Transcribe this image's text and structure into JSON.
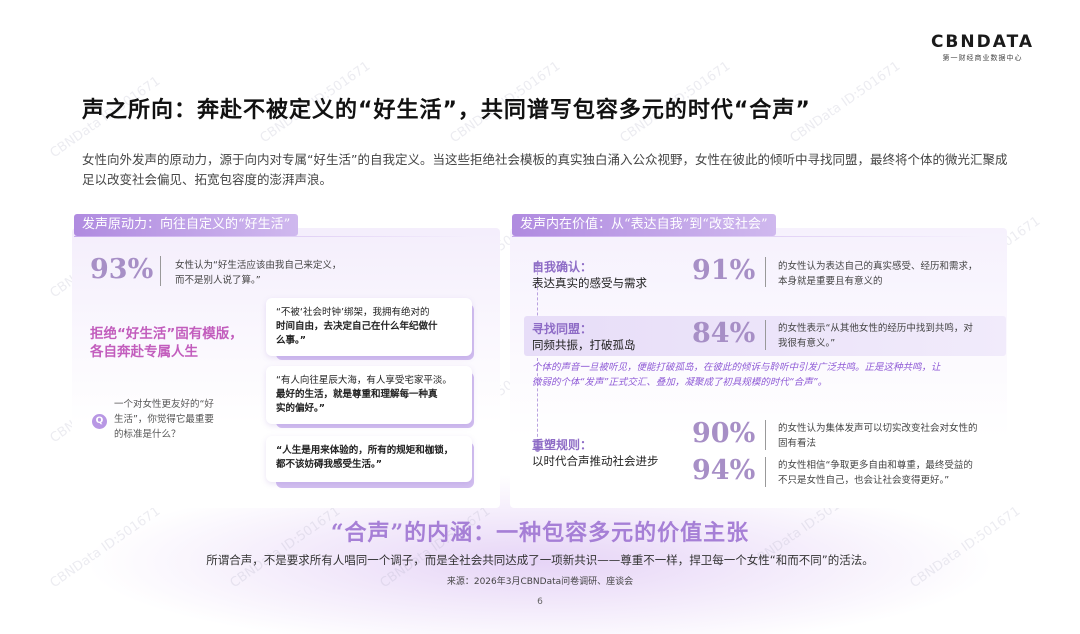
{
  "logo": {
    "main": "CBNDATA",
    "sub": "第一财经商业数据中心"
  },
  "title": "声之所向：奔赴不被定义的“好生活”，共同谱写包容多元的时代“合声”",
  "intro": "女性向外发声的原动力，源于向内对专属“好生活”的自我定义。当这些拒绝社会模板的真实独白涌入公众视野，女性在彼此的倾听中寻找同盟，最终将个体的微光汇聚成足以改变社会偏见、拓宽包容度的澎湃声浪。",
  "left": {
    "header": "发声原动力：向往自定义的“好生活”",
    "stat_pct": "93%",
    "stat_text_1": "女性认为“好生活应该由我自己来定义，",
    "stat_text_2": "而不是别人说了算。”",
    "slogan_1": "拒绝“好生活”固有模版，",
    "slogan_2": "各自奔赴专属人生",
    "question_icon": "Q",
    "question_1": "一个对女性更友好的“好",
    "question_2": "生活”，你觉得它最重要",
    "question_3": "的标准是什么？",
    "quotes": [
      {
        "a": "“不被‘社会时钟’绑架，我拥有绝对的",
        "b": "时间自由，去决定自己在什么年纪做什",
        "c": "么事。”"
      },
      {
        "a": "“有人向往星辰大海，有人享受宅家平淡。",
        "b": "最好的生活，就是尊重和理解每一种真",
        "c": "实的偏好。”"
      },
      {
        "a": "“人生是用来体验的，所有的规矩和枷锁，",
        "b": "都不该妨碍我感受生活。”",
        "c": ""
      }
    ]
  },
  "right": {
    "header": "发声内在价值：从“表达自我”到“改变社会”",
    "items": [
      {
        "label": "自我确认：",
        "sub": "表达真实的感受与需求",
        "pct": "91%",
        "text_1": "的女性认为表达自己的真实感受、经历和需求，",
        "text_2": "本身就是重要且有意义的"
      },
      {
        "label": "寻找同盟：",
        "sub": "同频共振，打破孤岛",
        "pct": "84%",
        "text_1": "的女性表示“从其他女性的经历中找到共鸣，对",
        "text_2": "我很有意义。”"
      },
      {
        "label": "重塑规则：",
        "sub": "以时代合声推动社会进步",
        "pct": "90%",
        "text_1": "的女性认为集体发声可以切实改变社会对女性的",
        "text_2": "固有看法"
      },
      {
        "label": "",
        "sub": "",
        "pct": "94%",
        "text_1": "的女性相信“争取更多自由和尊重，最终受益的",
        "text_2": "不只是女性自己，也会让社会变得更好。”"
      }
    ],
    "note_1": "个体的声音一旦被听见，便能打破孤岛，在彼此的倾诉与聆听中引发广泛共鸣。正是这种共鸣，让",
    "note_2": "微弱的个体“发声”正式交汇、叠加，凝聚成了初具规模的时代“合声”。"
  },
  "bottom": {
    "title": "“合声”的内涵：一种包容多元的价值主张",
    "text": "所谓合声，不是要求所有人唱同一个调子，而是全社会共同达成了一项新共识——尊重不一样，捍卫每一个女性“和而不同”的活法。",
    "source": "来源：2026年3月CBNData问卷调研、座谈会",
    "page": "6"
  },
  "watermark": "CBNData ID:501671"
}
